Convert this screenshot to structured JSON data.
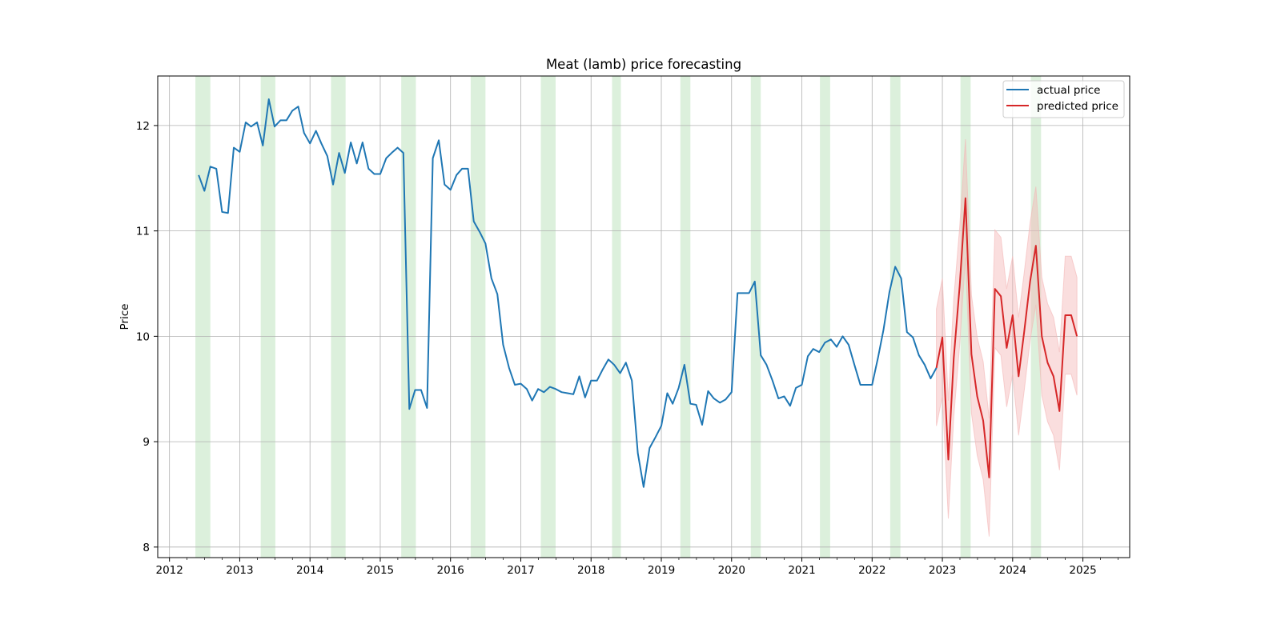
{
  "chart_data": {
    "type": "line",
    "title": "Meat (lamb) price forecasting",
    "xlabel": "",
    "ylabel": "Price",
    "xlim": [
      "2011-11-01",
      "2025-09-01"
    ],
    "ylim": [
      7.9,
      12.47
    ],
    "x_ticks": [
      "2012",
      "2013",
      "2014",
      "2015",
      "2016",
      "2017",
      "2018",
      "2019",
      "2020",
      "2021",
      "2022",
      "2023",
      "2024",
      "2025"
    ],
    "y_ticks": [
      "8",
      "9",
      "10",
      "11",
      "12"
    ],
    "grid": true,
    "legend_position": "top-right",
    "colors": {
      "actual": "#1f77b4",
      "predicted": "#d62728",
      "confidence_band": "#f4b6b6",
      "highlight_band": "#cdeacd",
      "grid": "#b0b0b0",
      "axes": "#000000"
    },
    "highlight_periods": [
      [
        "2012-05-15",
        "2012-08-01"
      ],
      [
        "2013-04-20",
        "2013-07-05"
      ],
      [
        "2014-04-20",
        "2014-07-05"
      ],
      [
        "2015-04-20",
        "2015-07-05"
      ],
      [
        "2016-04-15",
        "2016-07-01"
      ],
      [
        "2017-04-15",
        "2017-07-01"
      ],
      [
        "2018-04-20",
        "2018-06-05"
      ],
      [
        "2019-04-10",
        "2019-06-01"
      ],
      [
        "2020-04-10",
        "2020-06-01"
      ],
      [
        "2021-04-05",
        "2021-05-28"
      ],
      [
        "2022-04-05",
        "2022-05-28"
      ],
      [
        "2023-04-05",
        "2023-05-28"
      ],
      [
        "2024-04-05",
        "2024-05-28"
      ]
    ],
    "series": [
      {
        "name": "actual price",
        "x": [
          "2012-06",
          "2012-07",
          "2012-08",
          "2012-09",
          "2012-10",
          "2012-11",
          "2012-12",
          "2013-01",
          "2013-02",
          "2013-03",
          "2013-04",
          "2013-05",
          "2013-06",
          "2013-07",
          "2013-08",
          "2013-09",
          "2013-10",
          "2013-11",
          "2013-12",
          "2014-01",
          "2014-02",
          "2014-03",
          "2014-04",
          "2014-05",
          "2014-06",
          "2014-07",
          "2014-08",
          "2014-09",
          "2014-10",
          "2014-11",
          "2014-12",
          "2015-01",
          "2015-02",
          "2015-03",
          "2015-04",
          "2015-05",
          "2015-06",
          "2015-07",
          "2015-08",
          "2015-09",
          "2015-10",
          "2015-11",
          "2015-12",
          "2016-01",
          "2016-02",
          "2016-03",
          "2016-04",
          "2016-05",
          "2016-06",
          "2016-07",
          "2016-08",
          "2016-09",
          "2016-10",
          "2016-11",
          "2016-12",
          "2017-01",
          "2017-02",
          "2017-03",
          "2017-04",
          "2017-05",
          "2017-06",
          "2017-07",
          "2017-08",
          "2017-09",
          "2017-10",
          "2017-11",
          "2017-12",
          "2018-01",
          "2018-02",
          "2018-03",
          "2018-04",
          "2018-05",
          "2018-06",
          "2018-07",
          "2018-08",
          "2018-09",
          "2018-10",
          "2018-11",
          "2018-12",
          "2019-01",
          "2019-02",
          "2019-03",
          "2019-04",
          "2019-05",
          "2019-06",
          "2019-07",
          "2019-08",
          "2019-09",
          "2019-10",
          "2019-11",
          "2019-12",
          "2020-01",
          "2020-02",
          "2020-03",
          "2020-04",
          "2020-05",
          "2020-06",
          "2020-07",
          "2020-08",
          "2020-09",
          "2020-10",
          "2020-11",
          "2020-12",
          "2021-01",
          "2021-02",
          "2021-03",
          "2021-04",
          "2021-05",
          "2021-06",
          "2021-07",
          "2021-08",
          "2021-09",
          "2021-10",
          "2021-11",
          "2021-12",
          "2022-01",
          "2022-02",
          "2022-03",
          "2022-04",
          "2022-05",
          "2022-06",
          "2022-07",
          "2022-08",
          "2022-09",
          "2022-10",
          "2022-11",
          "2022-12"
        ],
        "values": [
          11.53,
          11.38,
          11.61,
          11.59,
          11.18,
          11.17,
          11.79,
          11.75,
          12.03,
          11.99,
          12.03,
          11.81,
          12.25,
          11.99,
          12.05,
          12.05,
          12.14,
          12.18,
          11.93,
          11.83,
          11.95,
          11.83,
          11.71,
          11.44,
          11.74,
          11.55,
          11.84,
          11.64,
          11.84,
          11.59,
          11.54,
          11.54,
          11.69,
          11.74,
          11.79,
          11.74,
          9.31,
          9.49,
          9.49,
          9.32,
          11.69,
          11.86,
          11.44,
          11.39,
          11.53,
          11.59,
          11.59,
          11.09,
          10.99,
          10.88,
          10.55,
          10.4,
          9.92,
          9.7,
          9.54,
          9.55,
          9.5,
          9.39,
          9.5,
          9.47,
          9.52,
          9.5,
          9.47,
          9.46,
          9.45,
          9.62,
          9.42,
          9.58,
          9.58,
          9.68,
          9.78,
          9.73,
          9.65,
          9.75,
          9.58,
          8.89,
          8.57,
          8.94,
          9.04,
          9.15,
          9.46,
          9.36,
          9.51,
          9.73,
          9.36,
          9.35,
          9.16,
          9.48,
          9.41,
          9.37,
          9.4,
          9.47,
          10.41,
          10.41,
          10.41,
          10.52,
          9.82,
          9.73,
          9.58,
          9.41,
          9.43,
          9.34,
          9.51,
          9.54,
          9.81,
          9.88,
          9.85,
          9.94,
          9.97,
          9.9,
          10.0,
          9.92,
          9.73,
          9.54,
          9.54,
          9.54,
          9.8,
          10.06,
          10.42,
          10.66,
          10.55,
          10.04,
          9.99,
          9.82,
          9.73,
          9.6,
          9.7
        ]
      },
      {
        "name": "predicted price",
        "x": [
          "2022-12",
          "2023-01",
          "2023-02",
          "2023-03",
          "2023-04",
          "2023-05",
          "2023-06",
          "2023-07",
          "2023-08",
          "2023-09",
          "2023-10",
          "2023-11",
          "2023-12",
          "2024-01",
          "2024-02",
          "2024-03",
          "2024-04",
          "2024-05",
          "2024-06",
          "2024-07",
          "2024-08",
          "2024-09",
          "2024-10",
          "2024-11",
          "2024-12"
        ],
        "values": [
          9.7,
          9.99,
          8.83,
          9.79,
          10.48,
          11.31,
          9.83,
          9.43,
          9.2,
          8.66,
          10.45,
          10.38,
          9.89,
          10.2,
          9.62,
          10.04,
          10.52,
          10.86,
          10.0,
          9.75,
          9.62,
          9.29,
          10.2,
          10.2,
          10.0
        ],
        "lower": [
          9.15,
          9.43,
          8.27,
          9.23,
          9.92,
          10.75,
          9.27,
          8.87,
          8.64,
          8.1,
          9.89,
          9.82,
          9.33,
          9.64,
          9.06,
          9.48,
          9.96,
          10.3,
          9.44,
          9.19,
          9.06,
          8.73,
          9.64,
          9.64,
          9.44
        ],
        "upper": [
          10.26,
          10.55,
          9.39,
          10.35,
          11.04,
          11.87,
          10.39,
          9.99,
          9.76,
          9.22,
          11.01,
          10.94,
          10.45,
          10.76,
          10.18,
          10.6,
          11.08,
          11.42,
          10.56,
          10.31,
          10.18,
          9.85,
          10.76,
          10.76,
          10.56
        ]
      }
    ]
  }
}
